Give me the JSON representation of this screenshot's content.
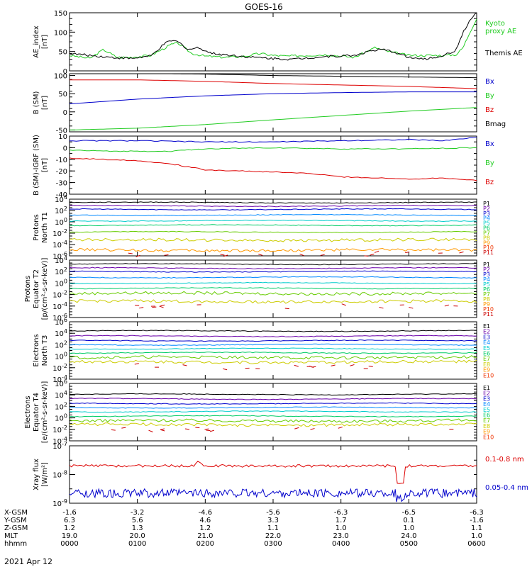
{
  "title": "GOES-16",
  "date_label": "2021 Apr 12",
  "colors": {
    "black": "#000000",
    "red": "#dd0000",
    "green": "#22cc22",
    "blue": "#0000cc",
    "p_colors": [
      "#000000",
      "#6a00a8",
      "#0000cc",
      "#0088ff",
      "#00cccc",
      "#00cc66",
      "#66cc00",
      "#cccc00",
      "#ff9900",
      "#ee3300",
      "#cc0000"
    ]
  },
  "chart_data": [
    {
      "type": "line",
      "panel": "AE",
      "ylabel": [
        "AE_index",
        "[nT]"
      ],
      "ylim": [
        0,
        150
      ],
      "yticks": [
        "0",
        "50",
        "100",
        "150"
      ],
      "series": [
        {
          "name": "Kyoto proxy AE",
          "color": "green",
          "legend_lines": [
            "Kyoto",
            "proxy AE"
          ],
          "x": [
            0,
            0.3,
            0.5,
            0.7,
            0.9,
            1.2,
            1.5,
            1.6,
            1.8,
            2.0,
            2.3,
            2.6,
            2.8,
            3.0,
            3.2,
            3.5,
            3.8,
            4.0,
            4.2,
            4.5,
            4.7,
            5.0,
            5.3,
            5.5,
            5.7,
            5.8,
            5.9,
            6.0
          ],
          "values": [
            40,
            32,
            55,
            35,
            35,
            40,
            68,
            72,
            45,
            38,
            35,
            38,
            45,
            40,
            38,
            40,
            42,
            38,
            35,
            60,
            50,
            40,
            40,
            40,
            42,
            60,
            100,
            135
          ]
        },
        {
          "name": "Themis AE",
          "color": "black",
          "legend_lines": [
            "Themis AE"
          ],
          "x": [
            0,
            0.3,
            0.6,
            0.9,
            1.2,
            1.4,
            1.5,
            1.6,
            1.75,
            1.9,
            2.1,
            2.4,
            2.7,
            3.0,
            3.3,
            3.6,
            3.9,
            4.2,
            4.4,
            4.6,
            4.8,
            5.0,
            5.2,
            5.4,
            5.6,
            5.7,
            5.8,
            5.9,
            6.0
          ],
          "values": [
            45,
            40,
            35,
            32,
            38,
            70,
            78,
            75,
            55,
            60,
            45,
            40,
            35,
            32,
            30,
            35,
            38,
            40,
            50,
            55,
            48,
            35,
            30,
            35,
            45,
            55,
            100,
            130,
            150
          ]
        }
      ]
    },
    {
      "type": "line",
      "panel": "B (SM)",
      "ylabel": [
        "B (SM)",
        "[nT]"
      ],
      "ylim": [
        -55,
        105
      ],
      "yticks": [
        "-50",
        "0",
        "50",
        "100"
      ],
      "series": [
        {
          "name": "Bx",
          "color": "blue",
          "x": [
            0,
            1,
            2,
            3,
            4,
            5,
            6
          ],
          "values": [
            22,
            35,
            44,
            50,
            53,
            55,
            55
          ]
        },
        {
          "name": "By",
          "color": "green",
          "x": [
            0,
            1,
            2,
            3,
            4,
            5,
            6
          ],
          "values": [
            -50,
            -45,
            -35,
            -22,
            -10,
            2,
            12
          ]
        },
        {
          "name": "Bz",
          "color": "red",
          "x": [
            0,
            1,
            2,
            3,
            4,
            5,
            6
          ],
          "values": [
            88,
            88,
            84,
            78,
            74,
            70,
            64
          ]
        },
        {
          "name": "Bmag",
          "color": "black",
          "x": [
            0,
            1,
            2,
            3,
            4,
            5,
            6
          ],
          "values": [
            106,
            106,
            104,
            100,
            98,
            96,
            94
          ]
        }
      ]
    },
    {
      "type": "line",
      "panel": "B (SM)-IGRF (SM)",
      "ylabel": [
        "B (SM)-IGRF (SM)",
        "[nT]"
      ],
      "ylim": [
        -40,
        10
      ],
      "yticks": [
        "-40",
        "-30",
        "-20",
        "-10",
        "0",
        "10"
      ],
      "series": [
        {
          "name": "Bx",
          "color": "blue",
          "x": [
            0,
            1,
            2,
            3,
            4,
            5,
            5.5,
            6
          ],
          "values": [
            6,
            6,
            5,
            5,
            6,
            7,
            6,
            9
          ]
        },
        {
          "name": "By",
          "color": "green",
          "x": [
            0,
            0.5,
            1,
            1.5,
            2,
            3,
            4,
            5,
            6
          ],
          "values": [
            -2,
            -3,
            -3,
            -3,
            -1,
            0,
            -1,
            -1,
            0
          ]
        },
        {
          "name": "Bz",
          "color": "red",
          "x": [
            0,
            0.5,
            1,
            1.5,
            2,
            2.5,
            3,
            3.5,
            4,
            4.5,
            5,
            5.5,
            6
          ],
          "values": [
            -9,
            -10,
            -11,
            -14,
            -19,
            -20,
            -21,
            -22,
            -25,
            -26,
            -27,
            -26,
            -28
          ]
        }
      ]
    },
    {
      "type": "line",
      "panel": "Protons North T1",
      "ylabel": [
        "Protons",
        "North T1"
      ],
      "yscale": "log",
      "ylim_exp": [
        -6,
        4
      ],
      "yticks": [
        "10^4",
        "10^2",
        "10^0",
        "10^-2",
        "10^-4",
        "10^-6"
      ],
      "legend": [
        "P1",
        "P2",
        "P3",
        "P4",
        "P5",
        "P6",
        "P7",
        "P8",
        "P9",
        "P10",
        "P11"
      ],
      "levels_exp": [
        3.4,
        2.8,
        2.2,
        1.2,
        0.2,
        -0.6,
        -1.8,
        -3.2,
        -5.0
      ]
    },
    {
      "type": "line",
      "panel": "Protons Equator T2",
      "ylabel": [
        "Protons",
        "Equator T2",
        "[p/(cm²-s-sr-keV)]"
      ],
      "yscale": "log",
      "ylim_exp": [
        -6,
        4
      ],
      "yticks": [
        "10^4",
        "10^2",
        "10^0",
        "10^-2",
        "10^-4",
        "10^-6"
      ],
      "legend": [
        "P1",
        "P2",
        "P3",
        "P4",
        "P5",
        "P6",
        "P7",
        "P8",
        "P9",
        "P10",
        "P11"
      ],
      "levels_exp": [
        3.3,
        2.6,
        2.0,
        1.0,
        0.0,
        -0.9,
        -1.8,
        -3.2
      ]
    },
    {
      "type": "line",
      "panel": "Electrons North T3",
      "ylabel": [
        "Electrons",
        "North T3"
      ],
      "yscale": "log",
      "ylim_exp": [
        -4,
        6
      ],
      "yticks": [
        "10^6",
        "10^4",
        "10^2",
        "10^0",
        "10^-2",
        "10^-4"
      ],
      "legend": [
        "E1",
        "E2",
        "E3",
        "E4",
        "E5",
        "E6",
        "E7",
        "E8",
        "E9",
        "E10"
      ],
      "levels_exp": [
        4.4,
        3.5,
        2.7,
        2.0,
        1.3,
        0.6,
        -0.2,
        -1.0
      ]
    },
    {
      "type": "line",
      "panel": "Electrons Equator T4",
      "ylabel": [
        "Electrons",
        "Equator T4",
        "[e/(cm²-s-sr-keV)]"
      ],
      "yscale": "log",
      "ylim_exp": [
        -4,
        6
      ],
      "yticks": [
        "10^6",
        "10^4",
        "10^2",
        "10^0",
        "10^-2",
        "10^-4"
      ],
      "legend": [
        "E1",
        "E2",
        "E3",
        "E4",
        "E5",
        "E6",
        "E7",
        "E8",
        "E9",
        "E10"
      ],
      "levels_exp": [
        4.1,
        3.3,
        2.5,
        1.8,
        1.1,
        0.3,
        -0.5,
        -1.2
      ]
    },
    {
      "type": "line",
      "panel": "Xray flux",
      "ylabel": [
        "Xray flux",
        "[W/m²]"
      ],
      "yscale": "log",
      "ylim_exp": [
        -9,
        -7
      ],
      "yticks": [
        "10^-7",
        "10^-8",
        "10^-9"
      ],
      "series": [
        {
          "name": "0.1-0.8 nm",
          "color": "red",
          "base_exp": -7.7
        },
        {
          "name": "0.05-0.4 nm",
          "color": "blue",
          "base_exp": -8.65
        }
      ]
    }
  ],
  "bottom_axis": {
    "rows": [
      {
        "label": "X-GSM",
        "values": [
          "-1.6",
          "-3.2",
          "-4.6",
          "-5.6",
          "-6.3",
          "-6.5",
          "-6.3"
        ]
      },
      {
        "label": "Y-GSM",
        "values": [
          "6.3",
          "5.6",
          "4.6",
          "3.3",
          "1.7",
          "0.1",
          "-1.6"
        ]
      },
      {
        "label": "Z-GSM",
        "values": [
          "1.2",
          "1.3",
          "1.2",
          "1.1",
          "1.0",
          "1.0",
          "1.1"
        ]
      },
      {
        "label": "MLT",
        "values": [
          "19.0",
          "20.0",
          "21.0",
          "22.0",
          "23.0",
          "24.0",
          "1.0"
        ]
      },
      {
        "label": "hhmm",
        "values": [
          "0000",
          "0100",
          "0200",
          "0300",
          "0400",
          "0500",
          "0600"
        ]
      }
    ]
  }
}
